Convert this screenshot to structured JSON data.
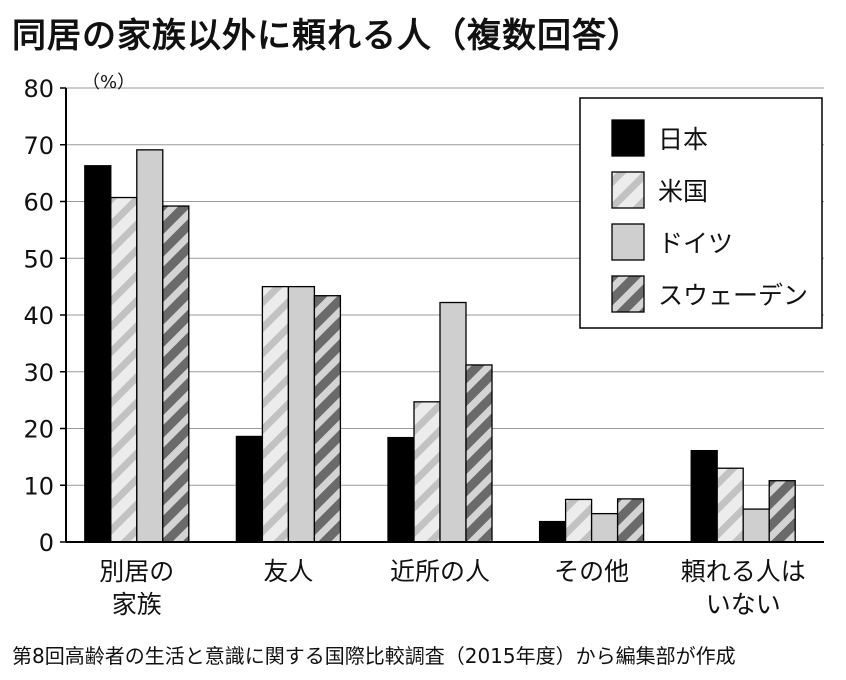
{
  "title": "同居の家族以外に頼れる人（複数回答）",
  "source": "第8回高齢者の生活と意識に関する国際比較調査（2015年度）から編集部が作成",
  "chart_data": {
    "type": "bar",
    "title": "同居の家族以外に頼れる人（複数回答）",
    "unit": "（%）",
    "ylim": [
      0,
      80
    ],
    "yticks": [
      0,
      10,
      20,
      30,
      40,
      50,
      60,
      70,
      80
    ],
    "grid": true,
    "legend": "top-right",
    "categories": [
      [
        "別居の",
        "家族"
      ],
      [
        "友人"
      ],
      [
        "近所の人"
      ],
      [
        "その他"
      ],
      [
        "頼れる人は",
        "いない"
      ]
    ],
    "series": [
      {
        "name": "日本",
        "values": [
          66.3,
          18.6,
          18.4,
          3.6,
          16.1
        ],
        "pattern": "solid-black"
      },
      {
        "name": "米国",
        "values": [
          60.7,
          45.0,
          24.7,
          7.5,
          13.0
        ],
        "pattern": "light-stripe"
      },
      {
        "name": "ドイツ",
        "values": [
          69.1,
          45.0,
          42.2,
          5.0,
          5.8
        ],
        "pattern": "solid-gray"
      },
      {
        "name": "スウェーデン",
        "values": [
          59.2,
          43.4,
          31.2,
          7.6,
          10.8
        ],
        "pattern": "dark-stripe"
      }
    ]
  }
}
